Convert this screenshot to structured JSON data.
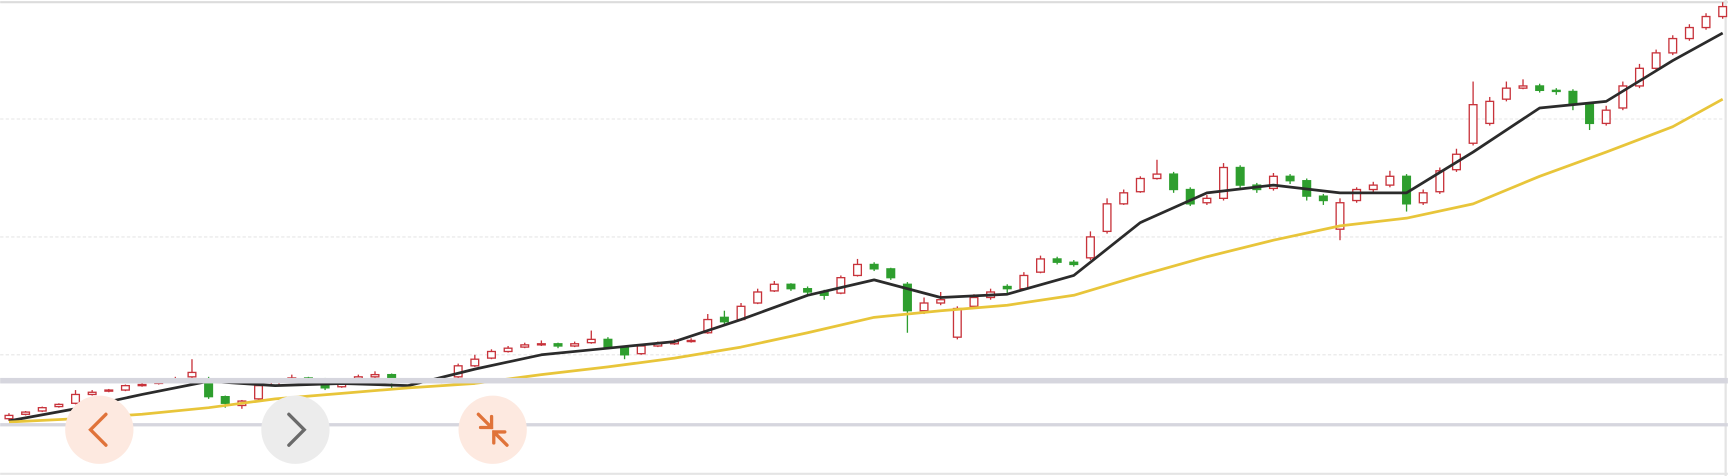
{
  "chart_data": {
    "type": "candlestick",
    "up_color": "#c8333b",
    "down_color": "#2e9e2e",
    "ylim": [
      0,
      430
    ],
    "yticks": [
      108,
      215,
      322
    ],
    "grid": true,
    "ohlc": [
      [
        50,
        55,
        48,
        53
      ],
      [
        54,
        57,
        53,
        56
      ],
      [
        57,
        61,
        56,
        60
      ],
      [
        61,
        64,
        60,
        63
      ],
      [
        64,
        76,
        63,
        72
      ],
      [
        72,
        76,
        71,
        74
      ],
      [
        75,
        77,
        74,
        76
      ],
      [
        76,
        81,
        75,
        80
      ],
      [
        80,
        83,
        79,
        81
      ],
      [
        82,
        85,
        81,
        83
      ],
      [
        84,
        88,
        83,
        86
      ],
      [
        88,
        104,
        87,
        92
      ],
      [
        86,
        88,
        68,
        70
      ],
      [
        70,
        71,
        60,
        64
      ],
      [
        62,
        67,
        59,
        66
      ],
      [
        68,
        82,
        67,
        80
      ],
      [
        80,
        86,
        79,
        84
      ],
      [
        84,
        90,
        83,
        87
      ],
      [
        87,
        88,
        85,
        86
      ],
      [
        86,
        87,
        76,
        78
      ],
      [
        79,
        84,
        78,
        82
      ],
      [
        84,
        90,
        83,
        88
      ],
      [
        88,
        93,
        87,
        90
      ],
      [
        90,
        91,
        78,
        84
      ],
      [
        83,
        86,
        82,
        84
      ],
      [
        84,
        85,
        82,
        83
      ],
      [
        83,
        86,
        82,
        84
      ],
      [
        88,
        100,
        87,
        98
      ],
      [
        98,
        108,
        97,
        104
      ],
      [
        105,
        113,
        104,
        111
      ],
      [
        111,
        116,
        110,
        114
      ],
      [
        115,
        119,
        114,
        117
      ],
      [
        117,
        121,
        116,
        118
      ],
      [
        118,
        119,
        114,
        116
      ],
      [
        116,
        120,
        115,
        118
      ],
      [
        119,
        130,
        118,
        122
      ],
      [
        122,
        124,
        113,
        115
      ],
      [
        115,
        116,
        104,
        108
      ],
      [
        109,
        118,
        108,
        116
      ],
      [
        116,
        120,
        115,
        118
      ],
      [
        118,
        122,
        117,
        120
      ],
      [
        120,
        123,
        119,
        121
      ],
      [
        128,
        145,
        127,
        140
      ],
      [
        142,
        148,
        136,
        138
      ],
      [
        140,
        155,
        139,
        152
      ],
      [
        155,
        168,
        154,
        165
      ],
      [
        166,
        175,
        165,
        172
      ],
      [
        172,
        173,
        166,
        168
      ],
      [
        168,
        170,
        163,
        165
      ],
      [
        165,
        167,
        158,
        162
      ],
      [
        164,
        180,
        163,
        178
      ],
      [
        180,
        195,
        179,
        190
      ],
      [
        190,
        192,
        184,
        186
      ],
      [
        186,
        187,
        176,
        178
      ],
      [
        172,
        174,
        128,
        148
      ],
      [
        148,
        160,
        145,
        155
      ],
      [
        155,
        165,
        153,
        158
      ],
      [
        124,
        152,
        122,
        150
      ],
      [
        152,
        163,
        150,
        160
      ],
      [
        160,
        168,
        158,
        165
      ],
      [
        170,
        172,
        164,
        168
      ],
      [
        168,
        183,
        167,
        180
      ],
      [
        183,
        198,
        182,
        195
      ],
      [
        195,
        197,
        190,
        192
      ],
      [
        192,
        194,
        188,
        190
      ],
      [
        196,
        220,
        194,
        215
      ],
      [
        220,
        250,
        218,
        245
      ],
      [
        245,
        258,
        244,
        255
      ],
      [
        256,
        270,
        255,
        268
      ],
      [
        268,
        285,
        267,
        272
      ],
      [
        272,
        274,
        255,
        258
      ],
      [
        258,
        260,
        243,
        245
      ],
      [
        246,
        253,
        244,
        250
      ],
      [
        250,
        282,
        248,
        278
      ],
      [
        278,
        280,
        258,
        262
      ],
      [
        262,
        264,
        255,
        258
      ],
      [
        259,
        273,
        257,
        270
      ],
      [
        270,
        272,
        263,
        266
      ],
      [
        266,
        268,
        248,
        252
      ],
      [
        252,
        254,
        244,
        248
      ],
      [
        222,
        250,
        212,
        246
      ],
      [
        248,
        260,
        246,
        258
      ],
      [
        258,
        265,
        256,
        262
      ],
      [
        262,
        275,
        260,
        270
      ],
      [
        270,
        272,
        238,
        245
      ],
      [
        246,
        258,
        244,
        255
      ],
      [
        256,
        278,
        254,
        275
      ],
      [
        276,
        295,
        274,
        290
      ],
      [
        300,
        356,
        298,
        335
      ],
      [
        318,
        342,
        316,
        338
      ],
      [
        340,
        356,
        338,
        350
      ],
      [
        350,
        358,
        349,
        352
      ],
      [
        352,
        354,
        346,
        348
      ],
      [
        348,
        350,
        344,
        347
      ],
      [
        347,
        349,
        330,
        335
      ],
      [
        335,
        337,
        312,
        318
      ],
      [
        318,
        334,
        316,
        330
      ],
      [
        332,
        356,
        330,
        352
      ],
      [
        352,
        372,
        350,
        368
      ],
      [
        368,
        385,
        366,
        382
      ],
      [
        382,
        398,
        380,
        395
      ],
      [
        395,
        408,
        393,
        405
      ],
      [
        405,
        418,
        403,
        415
      ],
      [
        415,
        428,
        413,
        424
      ]
    ],
    "series": [
      {
        "color": "#2b2b2b",
        "x": [
          0,
          4,
          8,
          12,
          16,
          20,
          24,
          28,
          32,
          36,
          40,
          44,
          48,
          52,
          56,
          60,
          64,
          68,
          72,
          76,
          80,
          84,
          88,
          92,
          96,
          100,
          103
        ],
        "values": [
          48,
          59,
          72,
          84,
          80,
          82,
          80,
          95,
          108,
          114,
          120,
          140,
          162,
          176,
          160,
          163,
          180,
          228,
          255,
          262,
          255,
          255,
          292,
          332,
          338,
          375,
          400
        ]
      },
      {
        "color": "#e8c53a",
        "x": [
          0,
          4,
          8,
          12,
          16,
          20,
          24,
          28,
          32,
          36,
          40,
          44,
          48,
          52,
          56,
          60,
          64,
          68,
          72,
          76,
          80,
          84,
          88,
          92,
          96,
          100,
          103
        ],
        "values": [
          47,
          50,
          54,
          60,
          68,
          73,
          78,
          82,
          90,
          97,
          105,
          115,
          128,
          142,
          148,
          153,
          162,
          180,
          197,
          212,
          225,
          232,
          245,
          270,
          292,
          315,
          340
        ]
      }
    ]
  }
}
